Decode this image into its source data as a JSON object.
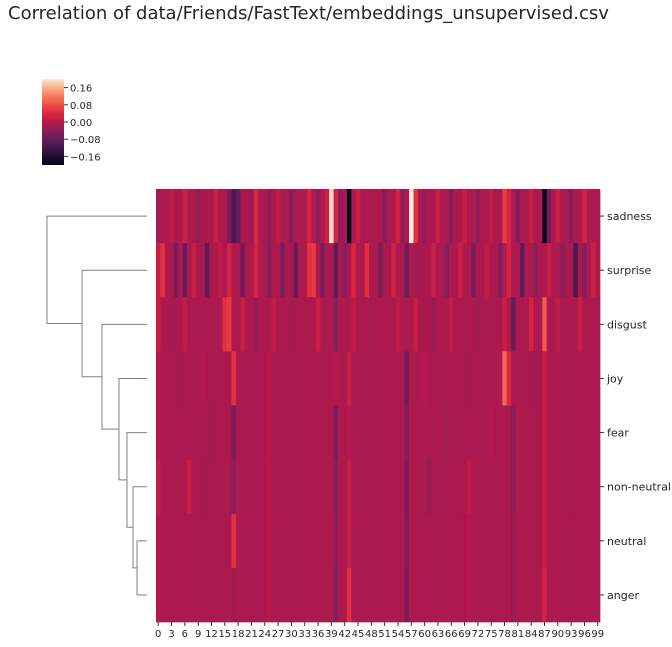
{
  "chart_data": {
    "type": "heatmap",
    "title": "Correlation of data/Friends/FastText/embeddings_unsupervised.csv",
    "rows": [
      "sadness",
      "surprise",
      "disgust",
      "joy",
      "fear",
      "non-neutral",
      "neutral",
      "anger"
    ],
    "columns": {
      "start": 0,
      "end": 99
    },
    "x_tick_labels": [
      "0",
      "3",
      "6",
      "9",
      "12",
      "15",
      "18",
      "21",
      "24",
      "27",
      "30",
      "33",
      "36",
      "39",
      "42",
      "45",
      "48",
      "51",
      "54",
      "57",
      "60",
      "63",
      "66",
      "69",
      "72",
      "75",
      "78",
      "81",
      "84",
      "87",
      "90",
      "93",
      "96",
      "99"
    ],
    "colorbar": {
      "vmin": -0.2,
      "vmax": 0.2,
      "ticks": [
        0.16,
        0.08,
        0.0,
        -0.08,
        -0.16
      ],
      "tick_labels": [
        "0.16",
        "0.08",
        "0.00",
        "−0.08",
        "−0.16"
      ],
      "colormap": "rocket"
    },
    "base_value": -0.01,
    "row_values": {
      "sadness": {
        "0": -0.02,
        "3": 0.01,
        "6": 0.02,
        "9": -0.03,
        "13": 0.02,
        "16": -0.06,
        "17": -0.11,
        "18": -0.08,
        "21": -0.03,
        "22": 0.04,
        "25": -0.04,
        "27": 0.01,
        "30": -0.05,
        "34": 0.03,
        "36": -0.04,
        "38": 0.02,
        "39": 0.19,
        "40": 0.03,
        "41": -0.04,
        "43": -0.2,
        "45": 0.02,
        "51": -0.05,
        "54": 0.03,
        "55": -0.04,
        "57": 0.21,
        "58": 0.05,
        "60": -0.04,
        "63": 0.02,
        "66": -0.05,
        "69": 0.02,
        "72": -0.04,
        "75": 0.01,
        "78": 0.06,
        "79": 0.03,
        "81": -0.05,
        "84": 0.02,
        "87": -0.21,
        "88": -0.07,
        "90": 0.02,
        "93": -0.05,
        "96": 0.03
      },
      "surprise": {
        "0": 0.02,
        "1": 0.05,
        "4": -0.06,
        "6": -0.08,
        "8": 0.02,
        "11": -0.09,
        "14": 0.01,
        "16": 0.03,
        "19": -0.07,
        "22": 0.03,
        "25": -0.05,
        "28": -0.06,
        "31": -0.08,
        "34": 0.05,
        "35": 0.06,
        "37": -0.06,
        "40": -0.09,
        "42": -0.05,
        "44": 0.04,
        "47": 0.05,
        "50": -0.06,
        "53": 0.03,
        "56": -0.07,
        "58": -0.02,
        "62": 0.02,
        "65": -0.05,
        "68": 0.02,
        "71": -0.06,
        "74": 0.01,
        "77": -0.05,
        "79": 0.03,
        "82": -0.09,
        "85": -0.04,
        "88": 0.02,
        "91": -0.04,
        "94": -0.11,
        "96": -0.05,
        "98": 0.02
      },
      "disgust": {
        "0": 0.02,
        "3": -0.02,
        "6": 0.01,
        "10": -0.01,
        "15": 0.05,
        "16": 0.06,
        "19": 0.02,
        "22": -0.03,
        "26": 0.01,
        "30": -0.02,
        "36": 0.02,
        "40": -0.05,
        "44": 0.01,
        "48": -0.02,
        "54": 0.01,
        "58": 0.02,
        "62": -0.03,
        "66": 0.01,
        "72": -0.02,
        "78": 0.02,
        "80": -0.08,
        "84": 0.03,
        "87": 0.09,
        "90": 0.01,
        "95": 0.02
      },
      "joy": {
        "0": 0.0,
        "5": -0.02,
        "10": 0.0,
        "17": 0.05,
        "25": 0.0,
        "40": 0.0,
        "43": 0.02,
        "56": -0.07,
        "60": 0.0,
        "70": -0.02,
        "78": 0.1,
        "79": 0.04,
        "84": -0.02,
        "87": 0.02
      },
      "fear": {
        "0": 0.0,
        "12": -0.02,
        "17": -0.06,
        "25": 0.0,
        "40": -0.06,
        "43": 0.0,
        "56": -0.05,
        "65": -0.02,
        "75": 0.0,
        "80": -0.04,
        "87": 0.02
      },
      "non-neutral": {
        "0": 0.01,
        "7": 0.02,
        "10": -0.02,
        "17": -0.04,
        "25": 0.0,
        "40": -0.05,
        "43": 0.02,
        "56": -0.06,
        "61": -0.03,
        "70": 0.01,
        "80": -0.04,
        "87": 0.02
      },
      "neutral": {
        "0": 0.0,
        "10": -0.01,
        "17": 0.05,
        "25": 0.0,
        "40": -0.04,
        "43": 0.02,
        "56": -0.05,
        "70": 0.0,
        "80": -0.03,
        "87": 0.02
      },
      "anger": {
        "0": 0.0,
        "17": -0.02,
        "25": 0.0,
        "40": -0.05,
        "43": 0.05,
        "56": -0.06,
        "70": 0.0,
        "80": -0.03,
        "87": 0.03
      }
    },
    "dendrogram": {
      "leaf_order": [
        "sadness",
        "surprise",
        "disgust",
        "joy",
        "fear",
        "non-neutral",
        "neutral",
        "anger"
      ],
      "merges": [
        {
          "left": "neutral",
          "right": "anger",
          "height": 0.1
        },
        {
          "left": "non-neutral",
          "right": "cluster-1",
          "height": 0.14
        },
        {
          "left": "fear",
          "right": "cluster-2",
          "height": 0.2
        },
        {
          "left": "joy",
          "right": "cluster-3",
          "height": 0.28
        },
        {
          "left": "disgust",
          "right": "cluster-4",
          "height": 0.45
        },
        {
          "left": "surprise",
          "right": "cluster-5",
          "height": 0.65
        },
        {
          "left": "sadness",
          "right": "cluster-6",
          "height": 1.0
        }
      ]
    }
  }
}
